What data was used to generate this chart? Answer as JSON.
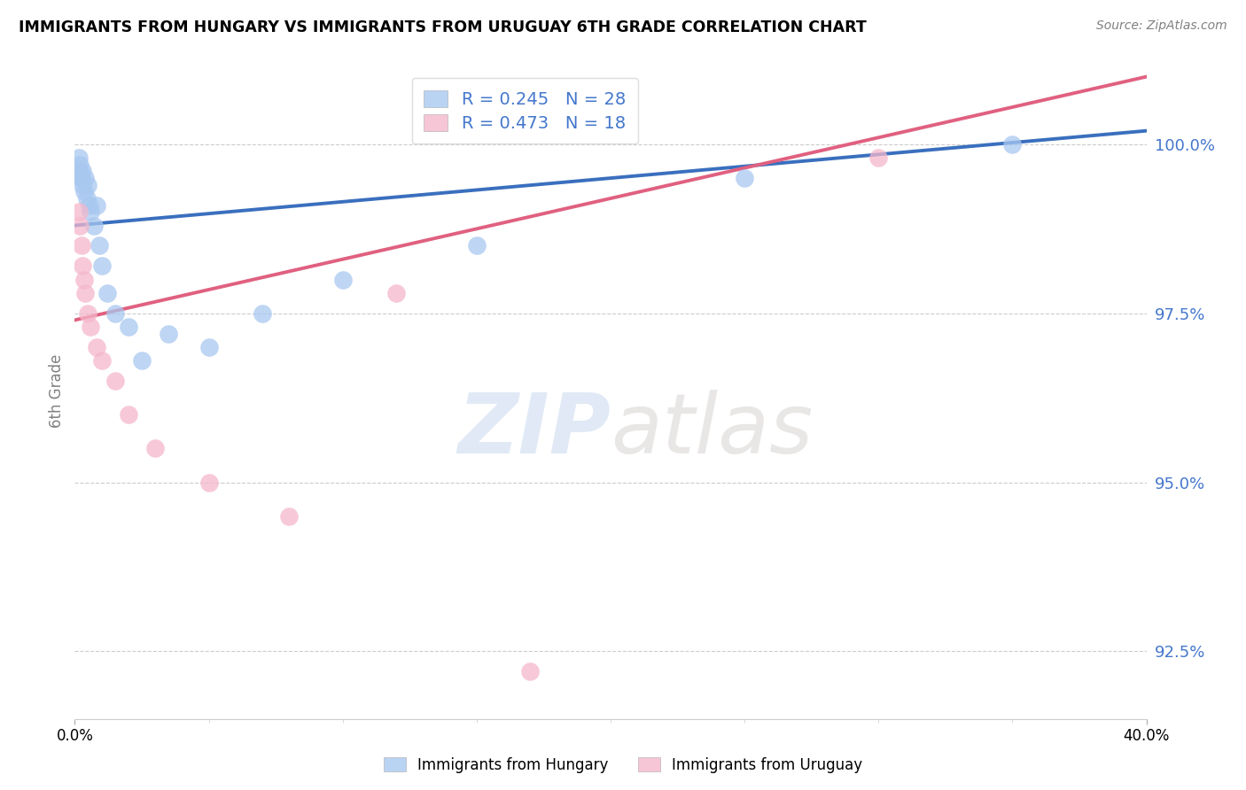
{
  "title": "IMMIGRANTS FROM HUNGARY VS IMMIGRANTS FROM URUGUAY 6TH GRADE CORRELATION CHART",
  "source": "Source: ZipAtlas.com",
  "ylabel": "6th Grade",
  "xlim": [
    0.0,
    40.0
  ],
  "ylim": [
    91.5,
    101.2
  ],
  "yticks": [
    92.5,
    95.0,
    97.5,
    100.0
  ],
  "ytick_labels": [
    "92.5%",
    "95.0%",
    "97.5%",
    "100.0%"
  ],
  "watermark": "ZIPatlas",
  "legend_labels": [
    "R = 0.245   N = 28",
    "R = 0.473   N = 18"
  ],
  "series1_name": "Immigrants from Hungary",
  "series2_name": "Immigrants from Uruguay",
  "series1_color": "#a8c8f0",
  "series2_color": "#f5b8cc",
  "series1_line_color": "#3a6fbe",
  "series2_line_color": "#e06080",
  "hungary_x": [
    0.15,
    0.18,
    0.2,
    0.22,
    0.25,
    0.28,
    0.3,
    0.35,
    0.4,
    0.45,
    0.5,
    0.55,
    0.6,
    0.7,
    0.8,
    0.9,
    1.0,
    1.2,
    1.5,
    2.0,
    2.5,
    3.5,
    5.0,
    7.0,
    10.0,
    15.0,
    25.0,
    35.0
  ],
  "hungary_y": [
    99.8,
    99.7,
    99.6,
    99.5,
    99.5,
    99.4,
    99.6,
    99.3,
    99.5,
    99.2,
    99.4,
    99.1,
    99.0,
    98.8,
    99.1,
    98.5,
    98.2,
    97.8,
    97.5,
    97.3,
    96.8,
    97.2,
    97.0,
    97.5,
    98.0,
    98.5,
    99.5,
    100.0
  ],
  "uruguay_x": [
    0.15,
    0.2,
    0.25,
    0.3,
    0.35,
    0.4,
    0.5,
    0.6,
    0.8,
    1.0,
    1.5,
    2.0,
    3.0,
    5.0,
    8.0,
    12.0,
    17.0,
    30.0
  ],
  "uruguay_y": [
    99.0,
    98.8,
    98.5,
    98.2,
    98.0,
    97.8,
    97.5,
    97.3,
    97.0,
    96.8,
    96.5,
    96.0,
    95.5,
    95.0,
    94.5,
    97.8,
    92.2,
    99.8
  ],
  "blue_line_x0": 0.0,
  "blue_line_y0": 98.8,
  "blue_line_x1": 40.0,
  "blue_line_y1": 100.2,
  "pink_line_x0": 0.0,
  "pink_line_y0": 97.4,
  "pink_line_x1": 40.0,
  "pink_line_y1": 101.0
}
